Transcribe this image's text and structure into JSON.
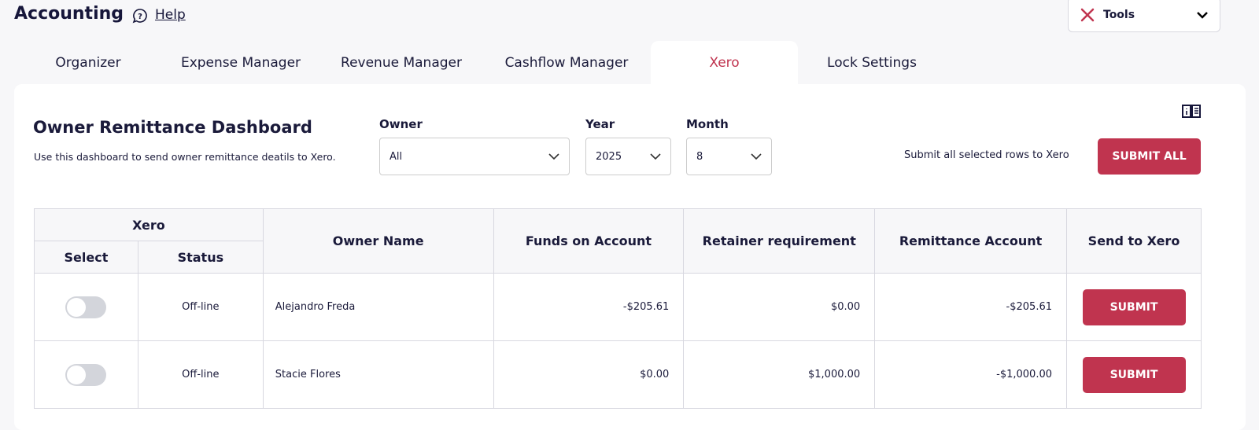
{
  "header": {
    "title": "Accounting",
    "help": "Help",
    "tools": "Tools"
  },
  "tabs": [
    {
      "label": "Organizer"
    },
    {
      "label": "Expense Manager"
    },
    {
      "label": "Revenue Manager"
    },
    {
      "label": "Cashflow Manager"
    },
    {
      "label": "Xero",
      "active": true
    },
    {
      "label": "Lock Settings"
    }
  ],
  "dashboard": {
    "title": "Owner Remittance Dashboard",
    "subtitle": "Use this dashboard to send owner remittance deatils to Xero.",
    "owner_label": "Owner",
    "owner_value": "All",
    "year_label": "Year",
    "year_value": "2025",
    "month_label": "Month",
    "month_value": "8",
    "submit_text": "Submit all selected rows to Xero",
    "submit_all": "SUBMIT ALL"
  },
  "table": {
    "group": "Xero",
    "headers": {
      "select": "Select",
      "status": "Status",
      "owner": "Owner Name",
      "funds": "Funds on Account",
      "retainer": "Retainer requirement",
      "remit": "Remittance Account",
      "send": "Send to Xero"
    },
    "rows": [
      {
        "selected": false,
        "status": "Off-line",
        "owner": "Alejandro Freda",
        "funds": "-$205.61",
        "retainer": "$0.00",
        "remit": "-$205.61",
        "button": "SUBMIT"
      },
      {
        "selected": false,
        "status": "Off-line",
        "owner": "Stacie Flores",
        "funds": "$0.00",
        "retainer": "$1,000.00",
        "remit": "-$1,000.00",
        "button": "SUBMIT"
      }
    ]
  },
  "colors": {
    "accent": "#c0344f",
    "background": "#f7f7f9"
  }
}
